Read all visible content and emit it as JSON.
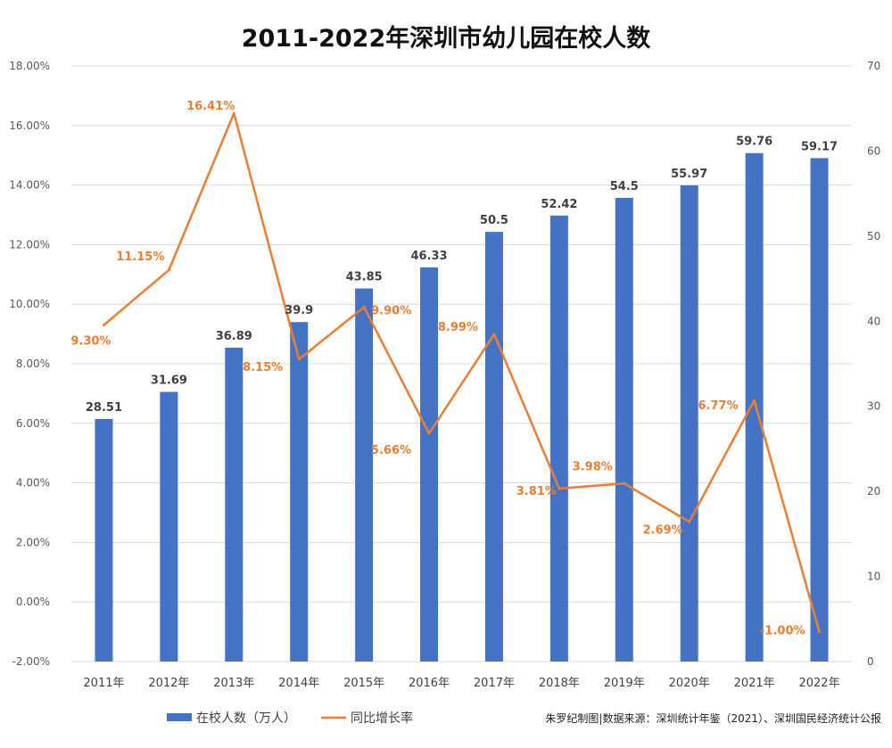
{
  "chart_data": {
    "type": "bar+line",
    "title": "2011-2022年深圳市幼儿园在校人数",
    "categories": [
      "2011年",
      "2012年",
      "2013年",
      "2014年",
      "2015年",
      "2016年",
      "2017年",
      "2018年",
      "2019年",
      "2020年",
      "2021年",
      "2022年"
    ],
    "series": [
      {
        "name": "在校人数（万人）",
        "type": "bar",
        "axis": "right",
        "color": "#4472C4",
        "values": [
          28.51,
          31.69,
          36.89,
          39.9,
          43.85,
          46.33,
          50.5,
          52.42,
          54.5,
          55.97,
          59.76,
          59.17
        ],
        "labels": [
          "28.51",
          "31.69",
          "36.89",
          "39.9",
          "43.85",
          "46.33",
          "50.5",
          "52.42",
          "54.5",
          "55.97",
          "59.76",
          "59.17"
        ]
      },
      {
        "name": "同比增长率",
        "type": "line",
        "axis": "left",
        "color": "#ED7D31",
        "values": [
          9.3,
          11.15,
          16.41,
          8.15,
          9.9,
          5.66,
          8.99,
          3.81,
          3.98,
          2.69,
          6.77,
          -1.0
        ],
        "labels": [
          "9.30%",
          "11.15%",
          "16.41%",
          "8.15%",
          "9.90%",
          "5.66%",
          "8.99%",
          "3.81%",
          "3.98%",
          "2.69%",
          "6.77%",
          "-1.00%"
        ]
      }
    ],
    "left_axis": {
      "range": [
        -2,
        18
      ],
      "ticks": [
        "-2.00%",
        "0.00%",
        "2.00%",
        "4.00%",
        "6.00%",
        "8.00%",
        "10.00%",
        "12.00%",
        "14.00%",
        "16.00%",
        "18.00%"
      ]
    },
    "right_axis": {
      "range": [
        0,
        70
      ],
      "ticks": [
        "0",
        "10",
        "20",
        "30",
        "40",
        "50",
        "60",
        "70"
      ]
    },
    "grid": true,
    "legend_position": "bottom",
    "source": "朱罗纪制图|数据来源：深圳统计年鉴（2021）、深圳国民经济统计公报"
  }
}
